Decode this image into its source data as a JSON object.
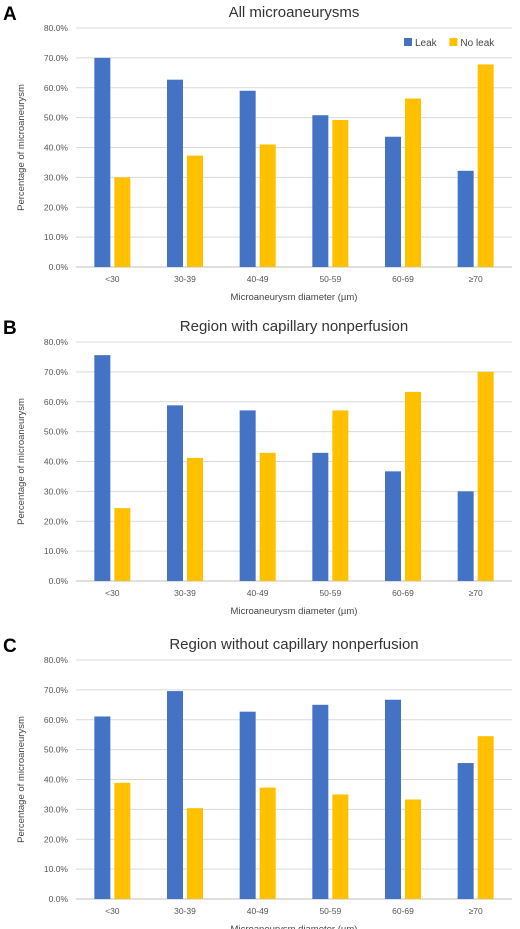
{
  "colors": {
    "leak": "#4472C4",
    "no_leak": "#FFC000"
  },
  "chart_data": [
    {
      "type": "bar",
      "panel": "A",
      "title": "All microaneurysms",
      "xlabel": "Microaneurysm diameter (µm)",
      "ylabel": "Percentage of microaneurysm",
      "ylim": [
        0,
        80
      ],
      "yticks": [
        "0.0%",
        "10.0%",
        "20.0%",
        "30.0%",
        "40.0%",
        "50.0%",
        "60.0%",
        "70.0%",
        "80.0%"
      ],
      "categories": [
        "<30",
        "30-39",
        "40-49",
        "50-59",
        "60-69",
        "≥70"
      ],
      "grid": true,
      "legend": "top-right",
      "series": [
        {
          "name": "Leak",
          "values": [
            70.0,
            62.7,
            59.0,
            50.8,
            43.6,
            32.2
          ]
        },
        {
          "name": "No leak",
          "values": [
            30.0,
            37.3,
            41.0,
            49.2,
            56.4,
            67.8
          ]
        }
      ]
    },
    {
      "type": "bar",
      "panel": "B",
      "title": "Region with capillary nonperfusion",
      "xlabel": "Microaneurysm diameter (µm)",
      "ylabel": "Percentage of microaneurysm",
      "ylim": [
        0,
        80
      ],
      "yticks": [
        "0.0%",
        "10.0%",
        "20.0%",
        "30.0%",
        "40.0%",
        "50.0%",
        "60.0%",
        "70.0%",
        "80.0%"
      ],
      "categories": [
        "<30",
        "30-39",
        "40-49",
        "50-59",
        "60-69",
        "≥70"
      ],
      "grid": true,
      "legend": "none",
      "series": [
        {
          "name": "Leak",
          "values": [
            75.6,
            58.8,
            57.1,
            42.9,
            36.7,
            30.0
          ]
        },
        {
          "name": "No leak",
          "values": [
            24.4,
            41.2,
            42.9,
            57.1,
            63.3,
            70.0
          ]
        }
      ]
    },
    {
      "type": "bar",
      "panel": "C",
      "title": "Region without capillary nonperfusion",
      "xlabel": "Microaneurysm diameter (µm)",
      "ylabel": "Percentage of microaneurysm",
      "ylim": [
        0,
        80
      ],
      "yticks": [
        "0.0%",
        "10.0%",
        "20.0%",
        "30.0%",
        "40.0%",
        "50.0%",
        "60.0%",
        "70.0%",
        "80.0%"
      ],
      "categories": [
        "<30",
        "30-39",
        "40-49",
        "50-59",
        "60-69",
        "≥70"
      ],
      "grid": true,
      "legend": "none",
      "series": [
        {
          "name": "Leak",
          "values": [
            61.1,
            69.6,
            62.7,
            65.0,
            66.7,
            45.5
          ]
        },
        {
          "name": "No leak",
          "values": [
            38.9,
            30.4,
            37.3,
            35.0,
            33.3,
            54.5
          ]
        }
      ]
    }
  ]
}
